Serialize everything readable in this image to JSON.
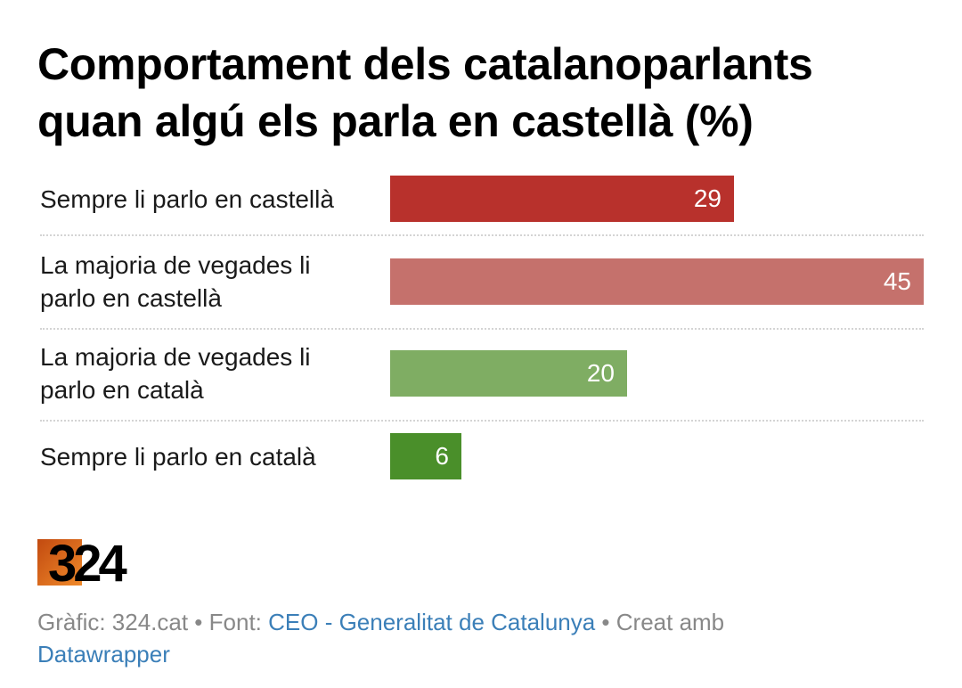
{
  "title_line1": "Comportament dels catalanoparlants",
  "title_line2": "quan algú els parla en castellà (%)",
  "chart_data": {
    "type": "bar",
    "orientation": "horizontal",
    "xlim": [
      0,
      45
    ],
    "categories": [
      [
        "Sempre li parlo en castellà"
      ],
      [
        "La majoria de vegades li",
        "parlo en castellà"
      ],
      [
        "La majoria de vegades li",
        "parlo en català"
      ],
      [
        "Sempre li parlo en català"
      ]
    ],
    "values": [
      29,
      45,
      20,
      6
    ],
    "colors": [
      "#b8312c",
      "#c5716c",
      "#7fad63",
      "#4a8f2a"
    ]
  },
  "footer": {
    "credit": "Gràfic: 324.cat",
    "bullet": " • ",
    "source_label": "Font: ",
    "source_link": "CEO - Generalitat de Catalunya",
    "made_with": "Creat amb",
    "tool_link": "Datawrapper"
  },
  "logo": {
    "text": "324",
    "accent": "#e8671f",
    "icon": "logo-324"
  }
}
